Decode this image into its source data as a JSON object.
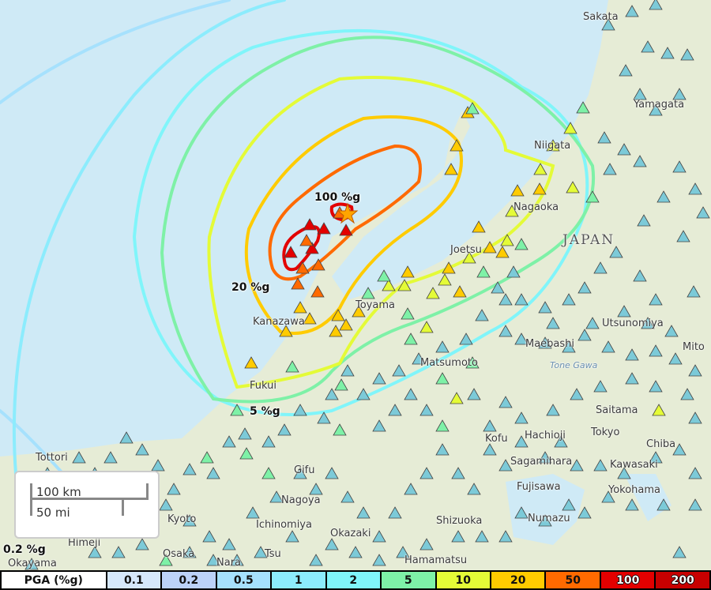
{
  "map": {
    "country_label": "JAPAN",
    "river_label": "Tone Gawa",
    "cities": [
      "Sakata",
      "Yamagata",
      "Niigata",
      "Nagaoka",
      "Joetsu",
      "Toyama",
      "Kanazawa",
      "Fukui",
      "Utsunomiya",
      "Mito",
      "Maebashi",
      "Matsumoto",
      "Saitama",
      "Kofu",
      "Hachioji",
      "Tokyo",
      "Chiba",
      "Sagamihara",
      "Kawasaki",
      "Yokohama",
      "Fujisawa",
      "Numazu",
      "Shizuoka",
      "Tottori",
      "Gifu",
      "Nagoya",
      "Ichinomiya",
      "Kyoto",
      "Okazaki",
      "Himeji",
      "Osaka",
      "Nara",
      "Tsu",
      "Hamamatsu",
      "Okayama"
    ],
    "contour_labels": [
      "100 %g",
      "20 %g",
      "5 %g",
      "0.2 %g"
    ],
    "epicenter_icon": "star-icon",
    "station_icon": "triangle-icon"
  },
  "scale_bar": {
    "km": "100 km",
    "mi": "50 mi"
  },
  "legend": {
    "title": "PGA (%g)",
    "bins": [
      {
        "label": "0.1",
        "color": "#d6e8fb"
      },
      {
        "label": "0.2",
        "color": "#bcd2f8"
      },
      {
        "label": "0.5",
        "color": "#a6e1fd"
      },
      {
        "label": "1",
        "color": "#8cecfd"
      },
      {
        "label": "2",
        "color": "#80f5fa"
      },
      {
        "label": "5",
        "color": "#7ef1a7"
      },
      {
        "label": "10",
        "color": "#e4fb37"
      },
      {
        "label": "20",
        "color": "#ffcb00"
      },
      {
        "label": "50",
        "color": "#ff6a00"
      },
      {
        "label": "100",
        "color": "#e30000"
      },
      {
        "label": "200",
        "color": "#c80000"
      }
    ]
  }
}
